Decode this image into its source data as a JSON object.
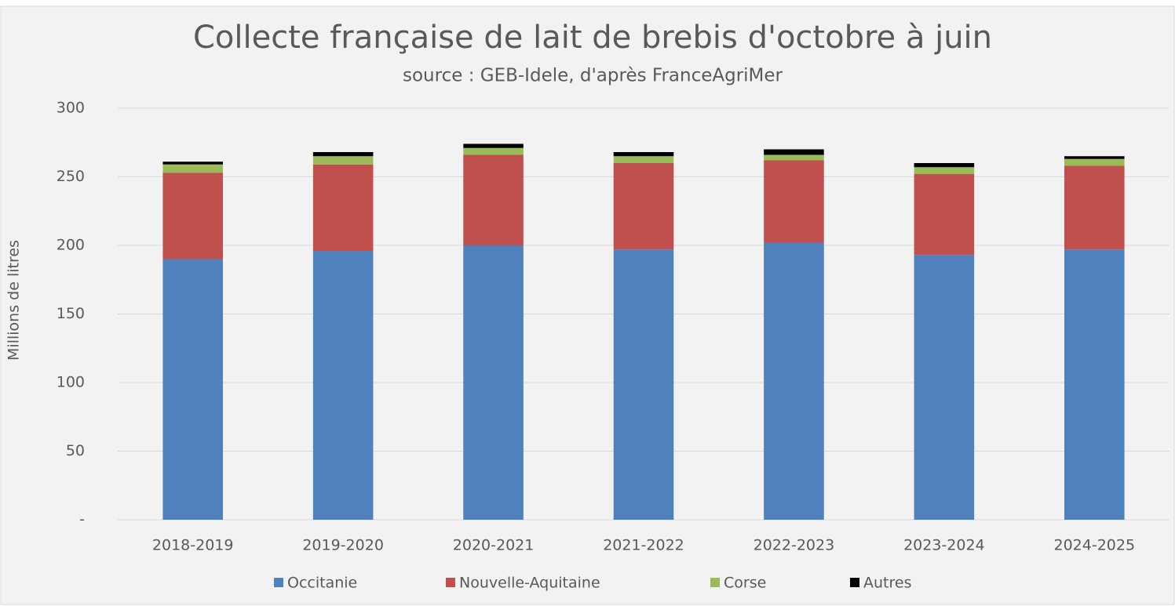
{
  "chart_data": {
    "type": "stacked_bar",
    "title": "Collecte française de lait de brebis d'octobre à juin",
    "subtitle": "source : GEB-Idele, d'après FranceAgriMer",
    "y_label": "Millions de litres",
    "categories": [
      "2018-2019",
      "2019-2020",
      "2020-2021",
      "2021-2022",
      "2022-2023",
      "2023-2024",
      "2024-2025"
    ],
    "series": [
      {
        "name": "Occitanie",
        "color": "#4f81bd",
        "values": [
          190,
          196,
          200,
          197,
          202,
          193,
          197
        ]
      },
      {
        "name": "Nouvelle-Aquitaine",
        "color": "#c0504d",
        "values": [
          63,
          63,
          66,
          63,
          60,
          59,
          61
        ]
      },
      {
        "name": "Corse",
        "color": "#9bbb59",
        "values": [
          6,
          6,
          5,
          5,
          4,
          5,
          5
        ]
      },
      {
        "name": "Autres",
        "color": "#000000",
        "values": [
          2,
          3,
          3,
          3,
          4,
          3,
          2
        ]
      }
    ],
    "ylim": [
      0,
      300
    ],
    "yticks": [
      {
        "value": 0,
        "label": "-"
      },
      50,
      100,
      150,
      200,
      250,
      300
    ],
    "grid": true,
    "legend": "bottom"
  }
}
